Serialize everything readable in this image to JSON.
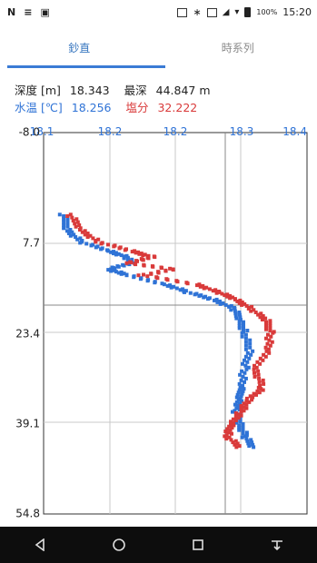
{
  "status_bar": {
    "left_glyphs": [
      "N",
      "≡",
      "▣"
    ],
    "battery_text": "100%",
    "time": "15:20"
  },
  "tabs": [
    {
      "label": "鈔直",
      "active": true
    },
    {
      "label": "時系列",
      "active": false
    }
  ],
  "readout": {
    "depth_label": "深度 [m]",
    "depth_value": "18.343",
    "max_depth_label": "最深",
    "max_depth_value": "44.847 m",
    "temp_label": "水温 [℃]",
    "temp_value": "18.256",
    "salinity_label": "塩分",
    "salinity_value": "32.222"
  },
  "colors": {
    "temperature": "#2f73d6",
    "salinity": "#d93a3a",
    "accent": "#3a7bd5"
  },
  "chart_data": {
    "type": "scatter",
    "x_tick_labels": [
      "18.1",
      "18.2",
      "18.2",
      "18.3",
      "18.4"
    ],
    "y_tick_labels": [
      "-8.0",
      "7.7",
      "23.4",
      "39.1",
      "54.8"
    ],
    "ylim": [
      -8.0,
      54.8
    ],
    "grid": true,
    "series": [
      {
        "color": "#2f73d6",
        "depth": [
          5.5,
          8.0,
          10.0,
          11.5,
          12.5,
          13.5,
          14.5,
          15.5,
          17.0,
          18.3,
          19.5,
          21.0,
          23.0,
          25.0,
          28.0,
          31.0,
          34.0,
          36.0,
          38.0,
          40.0,
          42.0,
          44.0
        ],
        "x_frac": [
          0.09,
          0.11,
          0.17,
          0.3,
          0.38,
          0.4,
          0.3,
          0.38,
          0.56,
          0.66,
          0.78,
          0.87,
          0.9,
          0.92,
          0.94,
          0.92,
          0.9,
          0.9,
          0.88,
          0.9,
          0.92,
          0.96
        ]
      },
      {
        "color": "#d93a3a",
        "depth": [
          5.5,
          8.0,
          10.0,
          11.5,
          12.5,
          13.5,
          14.5,
          15.5,
          17.0,
          18.3,
          19.5,
          21.0,
          23.0,
          25.0,
          28.0,
          31.0,
          34.0,
          36.0,
          38.0,
          40.0,
          42.0,
          44.0
        ],
        "x_frac": [
          0.12,
          0.17,
          0.25,
          0.4,
          0.5,
          0.38,
          0.6,
          0.45,
          0.7,
          0.8,
          0.88,
          0.95,
          1.02,
          1.04,
          1.02,
          0.97,
          1.0,
          0.94,
          0.9,
          0.86,
          0.84,
          0.9
        ]
      }
    ]
  }
}
